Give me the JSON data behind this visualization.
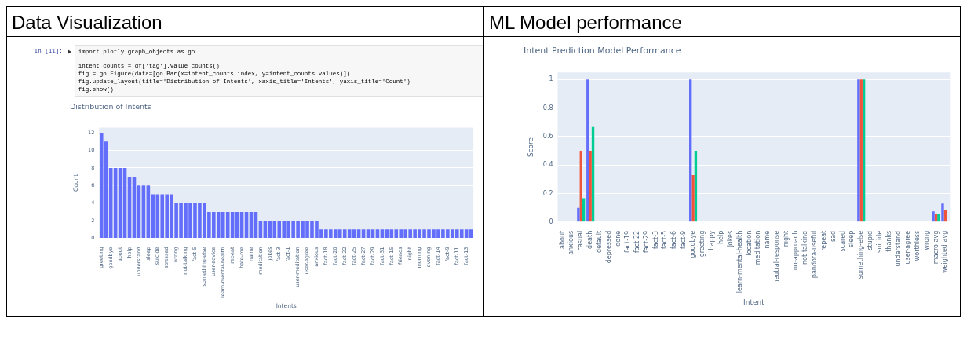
{
  "chart_data": [
    {
      "type": "bar",
      "title": "Data Visualization",
      "subtitle": "Distribution of Intents",
      "xlabel": "Intents",
      "ylabel": "Count",
      "annotations": [
        "In [11]:",
        "import plotly.graph_objects as go",
        "intent_counts = df['tag'].value_counts()",
        "fig = go.Figure(data=[go.Bar(x=intent_counts.index, y=intent_counts.values)])",
        "fig.update_layout(title='Distribution of Intents', xaxis_title='Intents', yaxis_title='Count')",
        "fig.show()"
      ],
      "categories": [
        "greeting",
        null,
        "goodbye",
        null,
        "about",
        null,
        "help",
        null,
        "understand",
        null,
        "sleep",
        null,
        "suicide",
        null,
        "stressed",
        null,
        "wrong",
        null,
        "not-talking",
        null,
        "fact-5",
        null,
        "something-else",
        null,
        "user-advice",
        null,
        "learn-mental-health",
        null,
        "repeat",
        null,
        "hate-me",
        null,
        "name",
        null,
        "meditation",
        null,
        "jokes",
        null,
        "fact-3",
        null,
        "fact-1",
        null,
        "user-meditation",
        null,
        "user-agree",
        null,
        "anxious",
        null,
        "fact-18",
        null,
        "fact-20",
        null,
        "fact-22",
        null,
        "fact-25",
        null,
        "fact-27",
        null,
        "fact-29",
        null,
        "fact-31",
        null,
        "fact-15",
        null,
        "friends",
        null,
        "night",
        null,
        "morning",
        null,
        "evening",
        null,
        "fact-14",
        null,
        "fact-9",
        null,
        "fact-11",
        null,
        "fact-13",
        null
      ],
      "values": [
        12,
        11,
        8,
        8,
        8,
        8,
        7,
        7,
        6,
        6,
        6,
        5,
        5,
        5,
        5,
        5,
        4,
        4,
        4,
        4,
        4,
        4,
        4,
        3,
        3,
        3,
        3,
        3,
        3,
        3,
        3,
        3,
        3,
        3,
        2,
        2,
        2,
        2,
        2,
        2,
        2,
        2,
        2,
        2,
        2,
        2,
        2,
        1,
        1,
        1,
        1,
        1,
        1,
        1,
        1,
        1,
        1,
        1,
        1,
        1,
        1,
        1,
        1,
        1,
        1,
        1,
        1,
        1,
        1,
        1,
        1,
        1,
        1,
        1,
        1,
        1,
        1,
        1,
        1,
        1
      ],
      "color": "#636efa",
      "ylim": [
        0,
        12.6
      ],
      "yticks": [
        0,
        2,
        4,
        6,
        8,
        10,
        12
      ],
      "grid": "y",
      "legend": false
    },
    {
      "type": "bar",
      "title": "ML Model performance",
      "subtitle": "Intent Prediction Model Performance",
      "xlabel": "Intent",
      "ylabel": "Score",
      "categories": [
        "about",
        "anxious",
        "casual",
        "death",
        "default",
        "depressed",
        "done",
        "fact-19",
        "fact-22",
        "fact-29",
        "fact-3",
        "fact-5",
        "fact-6",
        "fact-9",
        "goodbye",
        "greeting",
        "happy",
        "help",
        "jokes",
        "learn-mental-health",
        "location",
        "meditation",
        "name",
        "neutral-response",
        "night",
        "no-approach",
        "not-talking",
        "pandora-useful",
        "repeat",
        "sad",
        "scared",
        "sleep",
        "something-else",
        "stupid",
        "suicide",
        "thanks",
        "understand",
        "user-agree",
        "worthless",
        "wrong",
        "macro avg",
        "weighted avg"
      ],
      "series": [
        {
          "color": "#636efa",
          "values": [
            0,
            0,
            0.1,
            1,
            0,
            0,
            0,
            0,
            0,
            0,
            0,
            0,
            0,
            0,
            1,
            0,
            0,
            0,
            0,
            0,
            0,
            0,
            0,
            0,
            0,
            0,
            0,
            0,
            0,
            0,
            0,
            0,
            1,
            0,
            0,
            0,
            0,
            0,
            0,
            0,
            0.075,
            0.13
          ]
        },
        {
          "color": "#ef553b",
          "values": [
            0,
            0,
            0.5,
            0.5,
            0,
            0,
            0,
            0,
            0,
            0,
            0,
            0,
            0,
            0,
            0.33,
            0,
            0,
            0,
            0,
            0,
            0,
            0,
            0,
            0,
            0,
            0,
            0,
            0,
            0,
            0,
            0,
            0,
            1,
            0,
            0,
            0,
            0,
            0,
            0,
            0,
            0.055,
            0.085
          ]
        },
        {
          "color": "#00cc96",
          "values": [
            0,
            0,
            0.167,
            0.667,
            0,
            0,
            0,
            0,
            0,
            0,
            0,
            0,
            0,
            0,
            0.5,
            0,
            0,
            0,
            0,
            0,
            0,
            0,
            0,
            0,
            0,
            0,
            0,
            0,
            0,
            0,
            0,
            0,
            1,
            0,
            0,
            0,
            0,
            0,
            0,
            0,
            0.055,
            null
          ]
        }
      ],
      "ylim": [
        0,
        1.05
      ],
      "yticks": [
        0,
        0.2,
        0.4,
        0.6,
        0.8,
        1
      ],
      "grid": "y",
      "legend": false
    }
  ]
}
